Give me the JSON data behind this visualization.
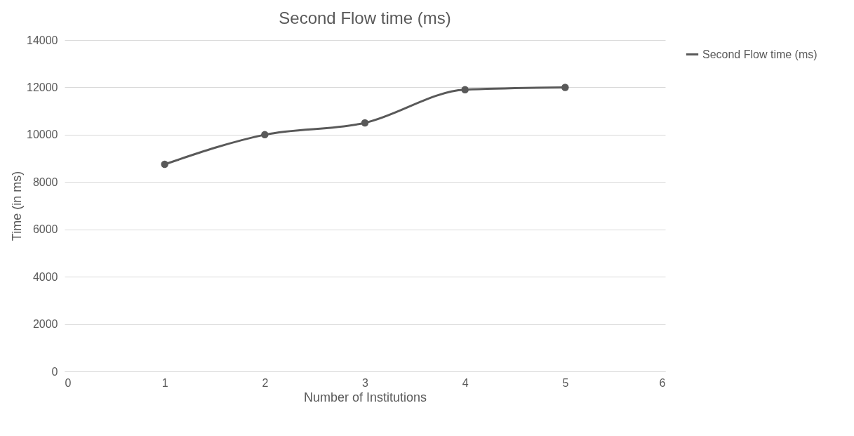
{
  "chart_data": {
    "type": "line",
    "title": "Second Flow time (ms)",
    "xlabel": "Number of Institutions",
    "ylabel": "Time (in ms)",
    "x": [
      1,
      2,
      3,
      4,
      5
    ],
    "series": [
      {
        "name": "Second Flow time (ms)",
        "color": "#595959",
        "values": [
          8750,
          10000,
          10500,
          11900,
          12000
        ]
      }
    ],
    "xlim": [
      0,
      6
    ],
    "xticks": [
      0,
      1,
      2,
      3,
      4,
      5,
      6
    ],
    "ylim": [
      0,
      14000
    ],
    "yticks": [
      0,
      2000,
      4000,
      6000,
      8000,
      10000,
      12000,
      14000
    ],
    "grid": "y",
    "legend": "right",
    "marker": "circle",
    "line_style": "solid"
  }
}
